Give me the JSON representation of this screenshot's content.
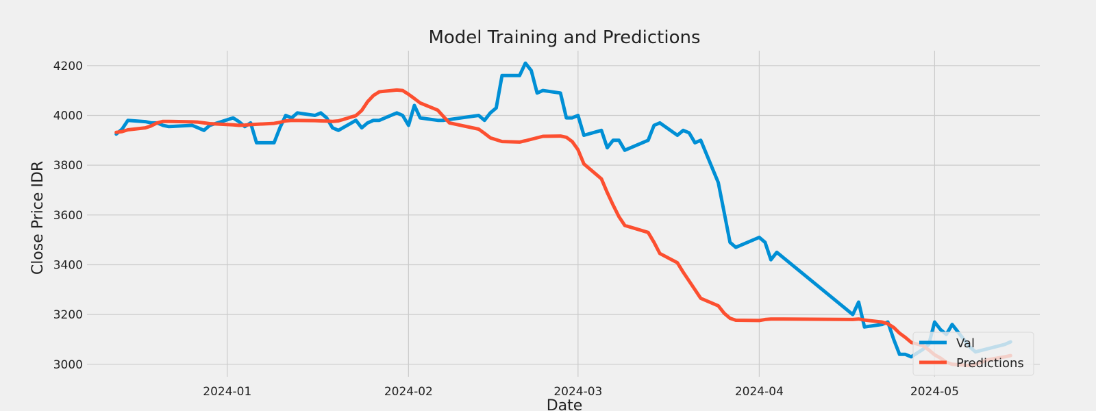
{
  "chart_data": {
    "type": "line",
    "title": "Model Training and Predictions",
    "xlabel": "Date",
    "ylabel": "Close Price IDR",
    "ylim": [
      2950,
      4260
    ],
    "xlim": [
      "2023-12-08",
      "2024-05-19"
    ],
    "xticks": [
      "2024-01",
      "2024-02",
      "2024-03",
      "2024-04",
      "2024-05"
    ],
    "yticks": [
      3000,
      3200,
      3400,
      3600,
      3800,
      4000,
      4200
    ],
    "grid": true,
    "legend_position": "bottom-right",
    "colors": {
      "Val": "#008fd5",
      "Predictions": "#fc4f30",
      "background": "#f0f0f0",
      "grid": "#cbcbcb"
    },
    "series": [
      {
        "name": "Val",
        "points": [
          [
            "2023-12-13",
            3925
          ],
          [
            "2023-12-14",
            3945
          ],
          [
            "2023-12-15",
            3980
          ],
          [
            "2023-12-18",
            3975
          ],
          [
            "2023-12-19",
            3970
          ],
          [
            "2023-12-20",
            3970
          ],
          [
            "2023-12-21",
            3960
          ],
          [
            "2023-12-22",
            3955
          ],
          [
            "2023-12-26",
            3960
          ],
          [
            "2023-12-27",
            3950
          ],
          [
            "2023-12-28",
            3940
          ],
          [
            "2023-12-29",
            3960
          ],
          [
            "2024-01-02",
            3990
          ],
          [
            "2024-01-03",
            3975
          ],
          [
            "2024-01-04",
            3955
          ],
          [
            "2024-01-05",
            3970
          ],
          [
            "2024-01-06",
            3890
          ],
          [
            "2024-01-09",
            3890
          ],
          [
            "2024-01-10",
            3950
          ],
          [
            "2024-01-11",
            4000
          ],
          [
            "2024-01-12",
            3990
          ],
          [
            "2024-01-13",
            4010
          ],
          [
            "2024-01-16",
            4000
          ],
          [
            "2024-01-17",
            4010
          ],
          [
            "2024-01-18",
            3990
          ],
          [
            "2024-01-19",
            3950
          ],
          [
            "2024-01-20",
            3940
          ],
          [
            "2024-01-23",
            3980
          ],
          [
            "2024-01-24",
            3950
          ],
          [
            "2024-01-25",
            3970
          ],
          [
            "2024-01-26",
            3980
          ],
          [
            "2024-01-27",
            3980
          ],
          [
            "2024-01-30",
            4010
          ],
          [
            "2024-01-31",
            4000
          ],
          [
            "2024-02-01",
            3960
          ],
          [
            "2024-02-02",
            4040
          ],
          [
            "2024-02-03",
            3990
          ],
          [
            "2024-02-06",
            3980
          ],
          [
            "2024-02-07",
            3980
          ],
          [
            "2024-02-13",
            4000
          ],
          [
            "2024-02-14",
            3980
          ],
          [
            "2024-02-15",
            4010
          ],
          [
            "2024-02-16",
            4030
          ],
          [
            "2024-02-17",
            4160
          ],
          [
            "2024-02-20",
            4160
          ],
          [
            "2024-02-21",
            4210
          ],
          [
            "2024-02-22",
            4180
          ],
          [
            "2024-02-23",
            4090
          ],
          [
            "2024-02-24",
            4100
          ],
          [
            "2024-02-27",
            4090
          ],
          [
            "2024-02-28",
            3990
          ],
          [
            "2024-02-29",
            3990
          ],
          [
            "2024-03-01",
            4000
          ],
          [
            "2024-03-02",
            3920
          ],
          [
            "2024-03-05",
            3940
          ],
          [
            "2024-03-06",
            3870
          ],
          [
            "2024-03-07",
            3900
          ],
          [
            "2024-03-08",
            3900
          ],
          [
            "2024-03-09",
            3860
          ],
          [
            "2024-03-13",
            3900
          ],
          [
            "2024-03-14",
            3960
          ],
          [
            "2024-03-15",
            3970
          ],
          [
            "2024-03-18",
            3920
          ],
          [
            "2024-03-19",
            3940
          ],
          [
            "2024-03-20",
            3930
          ],
          [
            "2024-03-21",
            3890
          ],
          [
            "2024-03-22",
            3900
          ],
          [
            "2024-03-25",
            3730
          ],
          [
            "2024-03-26",
            3610
          ],
          [
            "2024-03-27",
            3490
          ],
          [
            "2024-03-28",
            3470
          ],
          [
            "2024-04-01",
            3510
          ],
          [
            "2024-04-02",
            3490
          ],
          [
            "2024-04-03",
            3420
          ],
          [
            "2024-04-04",
            3450
          ],
          [
            "2024-04-17",
            3200
          ],
          [
            "2024-04-18",
            3250
          ],
          [
            "2024-04-19",
            3150
          ],
          [
            "2024-04-22",
            3160
          ],
          [
            "2024-04-23",
            3170
          ],
          [
            "2024-04-24",
            3100
          ],
          [
            "2024-04-25",
            3040
          ],
          [
            "2024-04-26",
            3040
          ],
          [
            "2024-04-27",
            3030
          ],
          [
            "2024-04-29",
            3060
          ],
          [
            "2024-04-30",
            3080
          ],
          [
            "2024-05-01",
            3170
          ],
          [
            "2024-05-02",
            3140
          ],
          [
            "2024-05-03",
            3120
          ],
          [
            "2024-05-04",
            3160
          ],
          [
            "2024-05-07",
            3070
          ],
          [
            "2024-05-08",
            3050
          ],
          [
            "2024-05-13",
            3080
          ],
          [
            "2024-05-14",
            3090
          ]
        ]
      },
      {
        "name": "Predictions",
        "points": [
          [
            "2023-12-13",
            3932
          ],
          [
            "2023-12-14",
            3935
          ],
          [
            "2023-12-15",
            3942
          ],
          [
            "2023-12-18",
            3950
          ],
          [
            "2023-12-19",
            3958
          ],
          [
            "2023-12-20",
            3970
          ],
          [
            "2023-12-21",
            3976
          ],
          [
            "2023-12-22",
            3976
          ],
          [
            "2023-12-26",
            3974
          ],
          [
            "2023-12-27",
            3973
          ],
          [
            "2023-12-28",
            3970
          ],
          [
            "2023-12-29",
            3967
          ],
          [
            "2024-01-02",
            3962
          ],
          [
            "2024-01-03",
            3960
          ],
          [
            "2024-01-04",
            3961
          ],
          [
            "2024-01-05",
            3963
          ],
          [
            "2024-01-09",
            3968
          ],
          [
            "2024-01-10",
            3972
          ],
          [
            "2024-01-11",
            3978
          ],
          [
            "2024-01-12",
            3980
          ],
          [
            "2024-01-16",
            3979
          ],
          [
            "2024-01-17",
            3978
          ],
          [
            "2024-01-18",
            3977
          ],
          [
            "2024-01-19",
            3976
          ],
          [
            "2024-01-20",
            3978
          ],
          [
            "2024-01-23",
            3999
          ],
          [
            "2024-01-24",
            4020
          ],
          [
            "2024-01-25",
            4055
          ],
          [
            "2024-01-26",
            4080
          ],
          [
            "2024-01-27",
            4095
          ],
          [
            "2024-01-30",
            4102
          ],
          [
            "2024-01-31",
            4100
          ],
          [
            "2024-02-01",
            4085
          ],
          [
            "2024-02-02",
            4068
          ],
          [
            "2024-02-03",
            4050
          ],
          [
            "2024-02-06",
            4021
          ],
          [
            "2024-02-07",
            3995
          ],
          [
            "2024-02-08",
            3970
          ],
          [
            "2024-02-13",
            3945
          ],
          [
            "2024-02-14",
            3928
          ],
          [
            "2024-02-15",
            3910
          ],
          [
            "2024-02-17",
            3895
          ],
          [
            "2024-02-20",
            3893
          ],
          [
            "2024-02-21",
            3898
          ],
          [
            "2024-02-24",
            3916
          ],
          [
            "2024-02-27",
            3917
          ],
          [
            "2024-02-28",
            3912
          ],
          [
            "2024-02-29",
            3895
          ],
          [
            "2024-03-01",
            3862
          ],
          [
            "2024-03-02",
            3805
          ],
          [
            "2024-03-05",
            3745
          ],
          [
            "2024-03-06",
            3690
          ],
          [
            "2024-03-07",
            3640
          ],
          [
            "2024-03-08",
            3593
          ],
          [
            "2024-03-09",
            3558
          ],
          [
            "2024-03-13",
            3530
          ],
          [
            "2024-03-14",
            3490
          ],
          [
            "2024-03-15",
            3445
          ],
          [
            "2024-03-18",
            3408
          ],
          [
            "2024-03-19",
            3370
          ],
          [
            "2024-03-22",
            3265
          ],
          [
            "2024-03-25",
            3235
          ],
          [
            "2024-03-26",
            3205
          ],
          [
            "2024-03-27",
            3185
          ],
          [
            "2024-03-28",
            3177
          ],
          [
            "2024-04-01",
            3176
          ],
          [
            "2024-04-02",
            3180
          ],
          [
            "2024-04-03",
            3182
          ],
          [
            "2024-04-04",
            3182
          ],
          [
            "2024-04-17",
            3180
          ],
          [
            "2024-04-18",
            3182
          ],
          [
            "2024-04-19",
            3178
          ],
          [
            "2024-04-22",
            3170
          ],
          [
            "2024-04-23",
            3163
          ],
          [
            "2024-04-24",
            3148
          ],
          [
            "2024-04-25",
            3125
          ],
          [
            "2024-04-26",
            3108
          ],
          [
            "2024-04-27",
            3088
          ],
          [
            "2024-04-29",
            3075
          ],
          [
            "2024-04-30",
            3058
          ],
          [
            "2024-05-01",
            3038
          ],
          [
            "2024-05-02",
            3025
          ],
          [
            "2024-05-03",
            3008
          ],
          [
            "2024-05-04",
            3000
          ],
          [
            "2024-05-07",
            2995
          ],
          [
            "2024-05-08",
            3000
          ],
          [
            "2024-05-09",
            3008
          ],
          [
            "2024-05-10",
            3018
          ],
          [
            "2024-05-13",
            3030
          ],
          [
            "2024-05-14",
            3035
          ]
        ]
      }
    ]
  }
}
